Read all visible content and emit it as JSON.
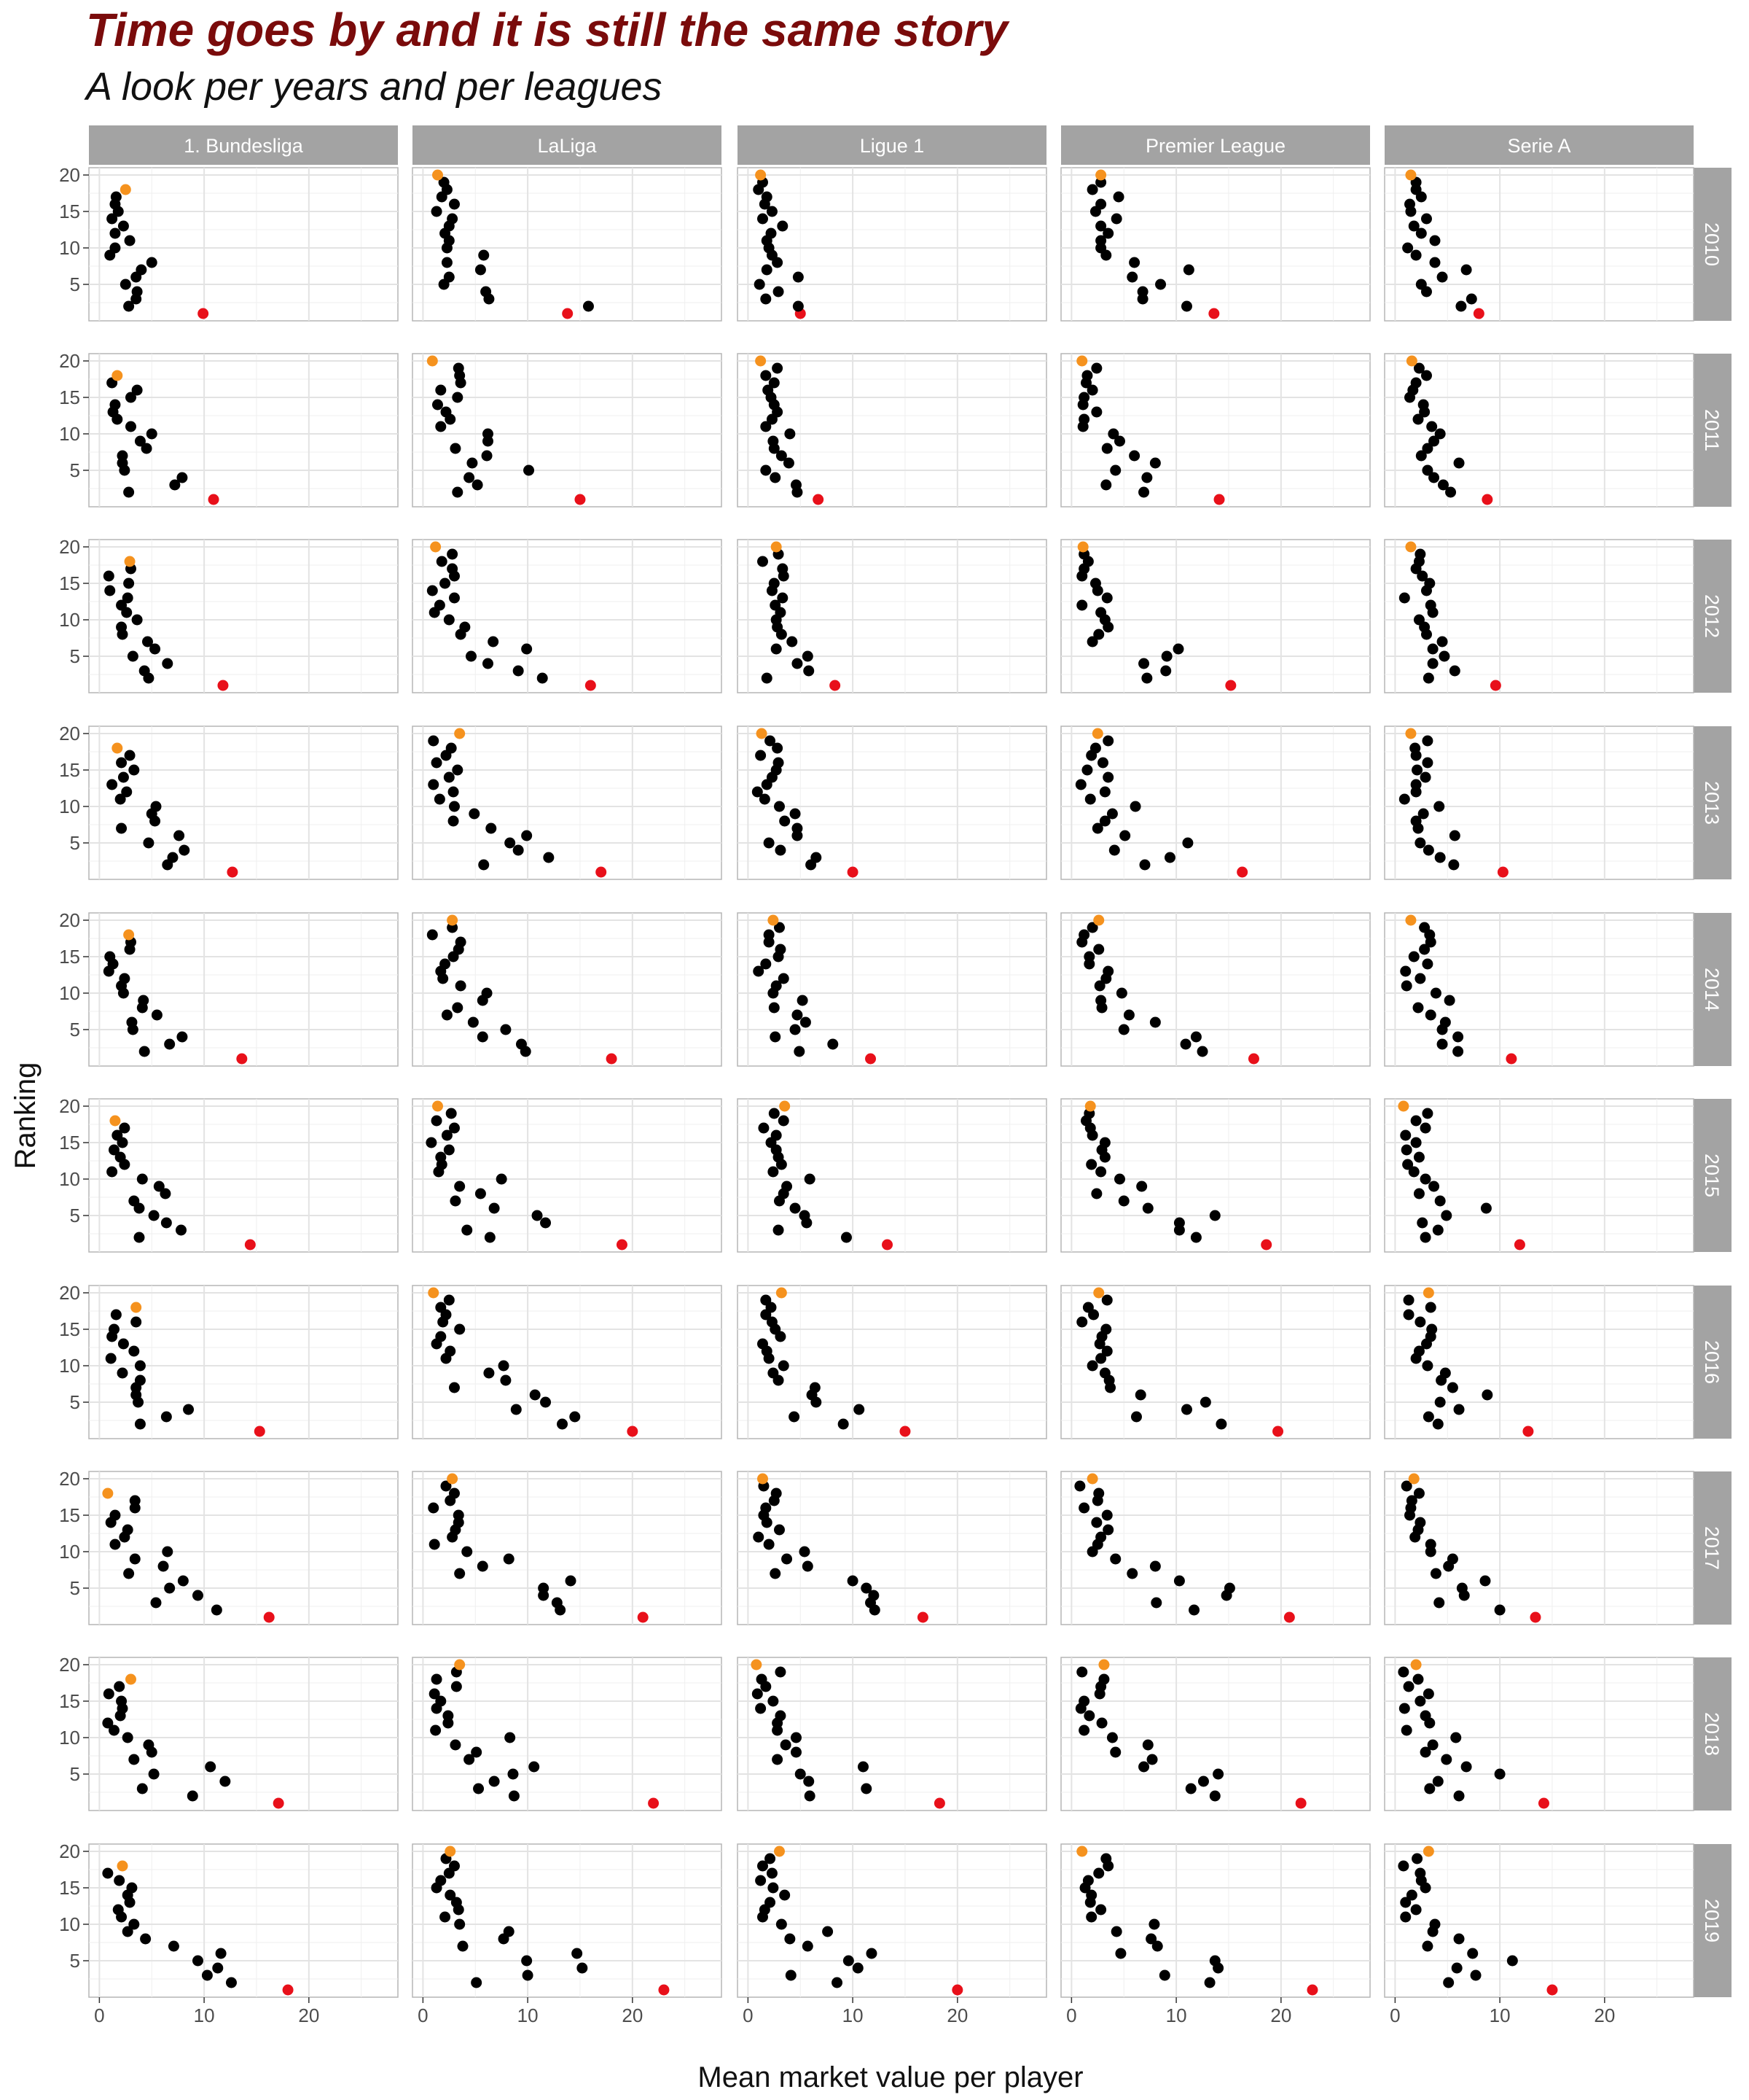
{
  "title": "Time goes by and it is still the same story",
  "subtitle": "A look per years and per leagues",
  "colors": {
    "point": "#000000",
    "first": "#e8101a",
    "last": "#f5921e",
    "strip": "#a3a3a3",
    "strip_text": "#ffffff",
    "grid": "#e3e3e3",
    "border": "#b5b5b5"
  },
  "chart_data": {
    "type": "scatter",
    "xlabel": "Mean market value per player",
    "ylabel": "Ranking",
    "xlim": [
      -1,
      28.5
    ],
    "ylim": [
      0,
      21
    ],
    "x_ticks": [
      0,
      10,
      20
    ],
    "y_ticks": [
      5,
      10,
      15,
      20
    ],
    "grid": true,
    "leagues": [
      "1. Bundesliga",
      "LaLiga",
      "Ligue 1",
      "Premier League",
      "Serie A"
    ],
    "years": [
      "2010",
      "2011",
      "2012",
      "2013",
      "2014",
      "2015",
      "2016",
      "2017",
      "2018",
      "2019"
    ],
    "highlight": {
      "rank_1": "red",
      "last_rank": "orange"
    },
    "panels": [
      {
        "league": "1. Bundesliga",
        "year": "2010",
        "points": [
          [
            9.9,
            1
          ],
          [
            2.8,
            2
          ],
          [
            3.5,
            3
          ],
          [
            3.6,
            4
          ],
          [
            2.5,
            5
          ],
          [
            3.5,
            6
          ],
          [
            4.0,
            7
          ],
          [
            5.0,
            8
          ],
          [
            1.0,
            9
          ],
          [
            1.5,
            10
          ],
          [
            2.9,
            11
          ],
          [
            1.5,
            12
          ],
          [
            2.3,
            13
          ],
          [
            1.2,
            14
          ],
          [
            1.8,
            15
          ],
          [
            1.5,
            16
          ],
          [
            1.6,
            17
          ],
          [
            2.5,
            18
          ]
        ]
      },
      {
        "league": "LaLiga",
        "year": "2010",
        "points": [
          [
            13.8,
            1
          ],
          [
            15.8,
            2
          ],
          [
            6.3,
            3
          ],
          [
            6.0,
            4
          ],
          [
            2.0,
            5
          ],
          [
            2.5,
            6
          ],
          [
            5.5,
            7
          ],
          [
            2.3,
            8
          ],
          [
            5.8,
            9
          ],
          [
            2.3,
            10
          ],
          [
            2.5,
            11
          ],
          [
            2.1,
            12
          ],
          [
            2.5,
            13
          ],
          [
            2.8,
            14
          ],
          [
            1.3,
            15
          ],
          [
            3.0,
            16
          ],
          [
            1.8,
            17
          ],
          [
            2.3,
            18
          ],
          [
            2.0,
            19
          ],
          [
            1.4,
            20
          ]
        ]
      },
      {
        "league": "Ligue 1",
        "year": "2010",
        "points": [
          [
            5.0,
            1
          ],
          [
            4.8,
            2
          ],
          [
            1.7,
            3
          ],
          [
            2.9,
            4
          ],
          [
            1.1,
            5
          ],
          [
            4.8,
            6
          ],
          [
            1.8,
            7
          ],
          [
            2.8,
            8
          ],
          [
            2.3,
            9
          ],
          [
            2.0,
            10
          ],
          [
            1.8,
            11
          ],
          [
            2.2,
            12
          ],
          [
            3.3,
            13
          ],
          [
            1.4,
            14
          ],
          [
            2.3,
            15
          ],
          [
            1.6,
            16
          ],
          [
            1.8,
            17
          ],
          [
            1.0,
            18
          ],
          [
            1.4,
            19
          ],
          [
            1.2,
            20
          ]
        ]
      },
      {
        "league": "Premier League",
        "year": "2010",
        "points": [
          [
            13.6,
            1
          ],
          [
            11.0,
            2
          ],
          [
            6.8,
            3
          ],
          [
            6.8,
            4
          ],
          [
            8.5,
            5
          ],
          [
            5.8,
            6
          ],
          [
            11.2,
            7
          ],
          [
            6.0,
            8
          ],
          [
            3.3,
            9
          ],
          [
            2.8,
            10
          ],
          [
            2.8,
            11
          ],
          [
            3.5,
            12
          ],
          [
            2.8,
            13
          ],
          [
            4.3,
            14
          ],
          [
            2.3,
            15
          ],
          [
            2.8,
            16
          ],
          [
            4.5,
            17
          ],
          [
            2.0,
            18
          ],
          [
            2.8,
            19
          ],
          [
            2.8,
            20
          ]
        ]
      },
      {
        "league": "Serie A",
        "year": "2010",
        "points": [
          [
            8.0,
            1
          ],
          [
            6.3,
            2
          ],
          [
            7.3,
            3
          ],
          [
            3.0,
            4
          ],
          [
            2.5,
            5
          ],
          [
            4.5,
            6
          ],
          [
            6.8,
            7
          ],
          [
            3.8,
            8
          ],
          [
            2.0,
            9
          ],
          [
            1.2,
            10
          ],
          [
            3.8,
            11
          ],
          [
            2.5,
            12
          ],
          [
            1.8,
            13
          ],
          [
            3.0,
            14
          ],
          [
            1.5,
            15
          ],
          [
            1.4,
            16
          ],
          [
            2.5,
            17
          ],
          [
            2.0,
            18
          ],
          [
            2.0,
            19
          ],
          [
            1.5,
            20
          ]
        ]
      }
    ]
  }
}
